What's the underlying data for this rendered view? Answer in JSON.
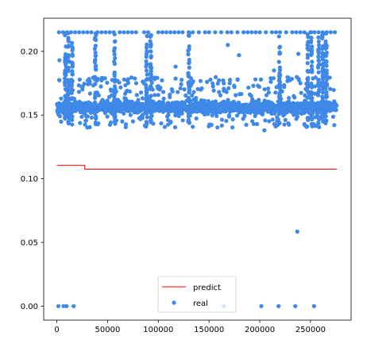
{
  "chart_data": {
    "type": "line+scatter",
    "title": "",
    "xlabel": "",
    "ylabel": "",
    "xlim": [
      -13000,
      290000
    ],
    "ylim": [
      -0.011,
      0.226
    ],
    "x_ticks": [
      0,
      50000,
      100000,
      150000,
      200000,
      250000
    ],
    "x_tick_labels": [
      "0",
      "50000",
      "100000",
      "150000",
      "200000",
      "250000"
    ],
    "y_ticks": [
      0.0,
      0.05,
      0.1,
      0.15,
      0.2
    ],
    "y_tick_labels": [
      "0.00",
      "0.05",
      "0.10",
      "0.15",
      "0.20"
    ],
    "grid": false,
    "legend_position": "lower center",
    "colors": {
      "predict": "#ff0000",
      "real": "#3f88e8"
    },
    "series": [
      {
        "name": "predict",
        "kind": "line",
        "x": [
          0,
          27500,
          27500,
          276000
        ],
        "y": [
          0.1105,
          0.1105,
          0.1075,
          0.1075
        ]
      },
      {
        "name": "real",
        "kind": "scatter",
        "range": [
          0,
          276000
        ],
        "dense_band": [
          0.15,
          0.162
        ],
        "scattered_band": [
          0.14,
          0.18
        ],
        "cap_value": 0.215,
        "cap_x": [
          2000,
          6000,
          10000,
          14000,
          18000,
          22000,
          26000,
          30000,
          34000,
          40000,
          44000,
          48000,
          52000,
          56000,
          62000,
          66000,
          70000,
          74000,
          78000,
          86000,
          90000,
          100000,
          104000,
          108000,
          112000,
          116000,
          120000,
          124000,
          130000,
          134000,
          140000,
          146000,
          150000,
          156000,
          162000,
          168000,
          172000,
          178000,
          184000,
          188000,
          192000,
          196000,
          200000,
          206000,
          212000,
          216000,
          220000,
          226000,
          232000,
          236000,
          240000,
          244000,
          250000,
          254000,
          258000,
          262000,
          266000,
          270000,
          274000
        ],
        "vertical_streaks_x": [
          8500,
          11500,
          15000,
          38000,
          57000,
          88500,
          92500,
          130000,
          219500,
          247500,
          251000,
          258000,
          262000,
          265500
        ],
        "outliers": [
          {
            "x": 1500,
            "y": 0.0
          },
          {
            "x": 6500,
            "y": 0.0
          },
          {
            "x": 9500,
            "y": 0.0
          },
          {
            "x": 16500,
            "y": 0.0
          },
          {
            "x": 164500,
            "y": 0.0
          },
          {
            "x": 201500,
            "y": 0.0
          },
          {
            "x": 218500,
            "y": 0.0
          },
          {
            "x": 235000,
            "y": 0.0
          },
          {
            "x": 253500,
            "y": 0.0
          },
          {
            "x": 237000,
            "y": 0.0585
          },
          {
            "x": 204500,
            "y": 0.138
          },
          {
            "x": 236000,
            "y": 0.147
          },
          {
            "x": 112000,
            "y": 0.144
          },
          {
            "x": 2500,
            "y": 0.193
          },
          {
            "x": 117000,
            "y": 0.188
          },
          {
            "x": 168500,
            "y": 0.205
          },
          {
            "x": 179500,
            "y": 0.197
          },
          {
            "x": 175000,
            "y": 0.172
          },
          {
            "x": 135000,
            "y": 0.168
          },
          {
            "x": 214000,
            "y": 0.185
          },
          {
            "x": 238000,
            "y": 0.198
          },
          {
            "x": 224000,
            "y": 0.172
          },
          {
            "x": 148000,
            "y": 0.176
          }
        ]
      }
    ]
  }
}
